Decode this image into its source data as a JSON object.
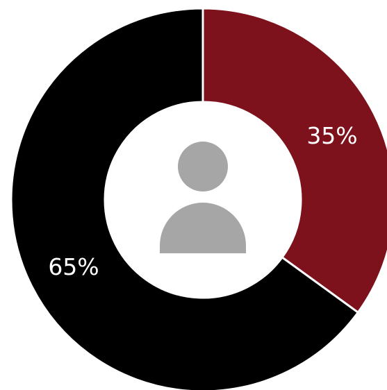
{
  "chart_data": {
    "type": "pie",
    "variant": "donut",
    "slices": [
      {
        "value": 35,
        "label": "35%",
        "color": "#7d111c"
      },
      {
        "value": 65,
        "label": "65%",
        "color": "#000000"
      }
    ],
    "separator_color": "#ffffff",
    "center_icon": "user-silhouette-icon",
    "center_icon_color": "#a6a6a6",
    "legend": "none"
  }
}
